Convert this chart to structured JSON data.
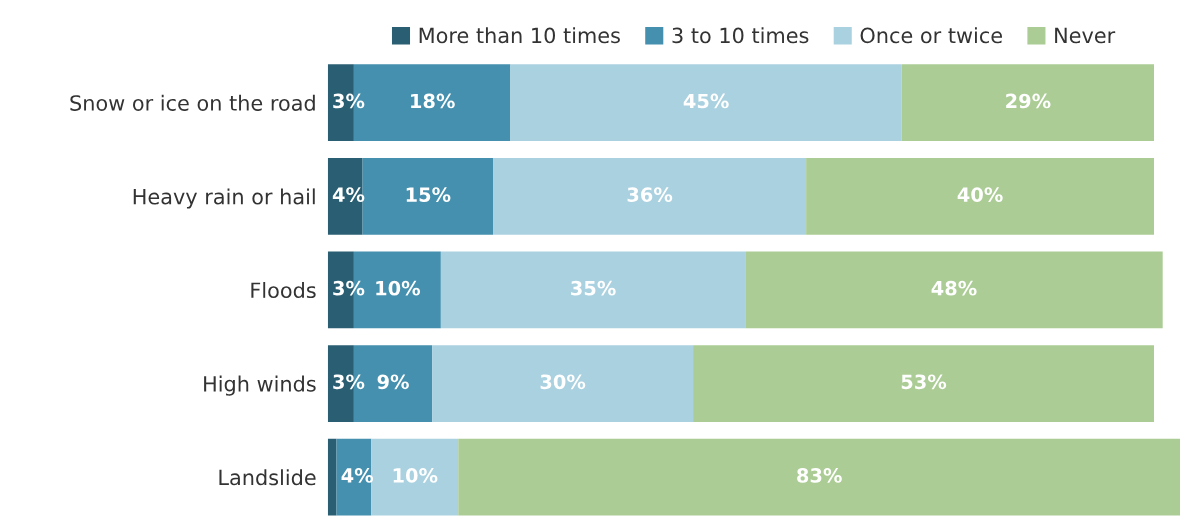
{
  "chart_data": {
    "type": "bar",
    "orientation": "horizontal",
    "stacked": true,
    "legend": "top",
    "grid": false,
    "categories": [
      "Snow or ice on the road",
      "Heavy rain or hail",
      "Floods",
      "High winds",
      "Landslide"
    ],
    "series": [
      {
        "name": "More than 10 times",
        "color": "#2a5f73",
        "values": [
          3,
          4,
          3,
          3,
          1
        ],
        "value_labels": [
          "3%",
          "4%",
          "3%",
          "3%",
          null
        ]
      },
      {
        "name": "3 to 10 times",
        "color": "#4490ae",
        "values": [
          18,
          15,
          10,
          9,
          4
        ],
        "value_labels": [
          "18%",
          "15%",
          "10%",
          "9%",
          "4%"
        ]
      },
      {
        "name": "Once or twice",
        "color": "#aad1e0",
        "values": [
          45,
          36,
          35,
          30,
          10
        ],
        "value_labels": [
          "45%",
          "36%",
          "35%",
          "30%",
          "10%"
        ]
      },
      {
        "name": "Never",
        "color": "#abcc94",
        "values": [
          29,
          40,
          48,
          53,
          83
        ],
        "value_labels": [
          "29%",
          "40%",
          "48%",
          "53%",
          "83%"
        ]
      }
    ]
  }
}
